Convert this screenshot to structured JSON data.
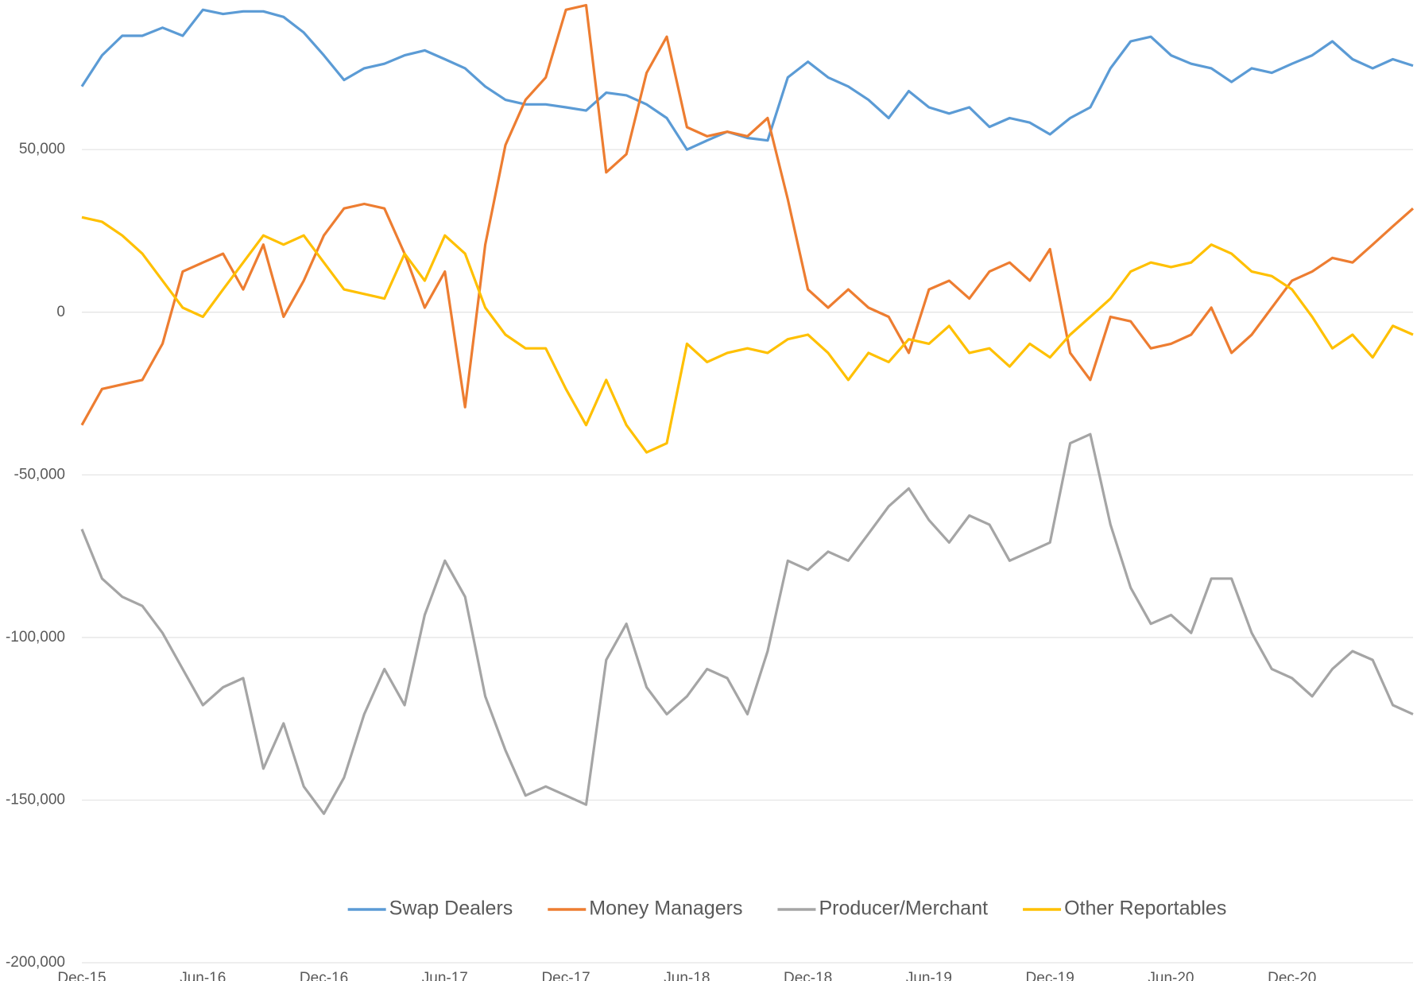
{
  "chart_data": {
    "type": "line",
    "categories": [
      "Dec-15",
      null,
      null,
      null,
      null,
      null,
      "Jun-16",
      null,
      null,
      null,
      null,
      null,
      "Dec-16",
      null,
      null,
      null,
      null,
      null,
      "Jun-17",
      null,
      null,
      null,
      null,
      null,
      "Dec-17",
      null,
      null,
      null,
      null,
      null,
      "Jun-18",
      null,
      null,
      null,
      null,
      null,
      "Dec-18",
      null,
      null,
      null,
      null,
      null,
      "Jun-19",
      null,
      null,
      null,
      null,
      null,
      "Dec-19",
      null,
      null,
      null,
      null,
      null,
      "Jun-20",
      null,
      null,
      null,
      null,
      null,
      "Dec-20",
      null,
      null,
      null,
      null,
      null,
      null
    ],
    "series": [
      {
        "name": "Swap Dealers",
        "color": "#5b9bd5",
        "values": [
          69400,
          79000,
          85000,
          85000,
          87500,
          85000,
          93000,
          91700,
          92500,
          92500,
          90800,
          86000,
          79000,
          71400,
          75000,
          76400,
          79000,
          80500,
          77800,
          75000,
          69400,
          65300,
          63900,
          63900,
          63000,
          62000,
          67500,
          66700,
          63900,
          59700,
          50000,
          52800,
          55500,
          53600,
          52800,
          72200,
          77000,
          72200,
          69400,
          65300,
          59700,
          68000,
          63000,
          61100,
          63000,
          57000,
          59700,
          58300,
          54700,
          59700,
          63000,
          75000,
          83300,
          84700,
          79000,
          76400,
          75000,
          70800,
          75000,
          73600,
          76400,
          79000,
          83300,
          77800,
          75000,
          77800,
          75800
        ]
      },
      {
        "name": "Money Managers",
        "color": "#ed7d31",
        "values": [
          -34700,
          -23600,
          -22200,
          -20800,
          -9700,
          12500,
          15300,
          18000,
          7000,
          20800,
          -1400,
          9700,
          23600,
          31900,
          33300,
          31900,
          18000,
          1400,
          12500,
          -29200,
          20800,
          51400,
          65300,
          72200,
          93000,
          94400,
          43000,
          48600,
          73600,
          84700,
          56900,
          54100,
          55500,
          54100,
          59700,
          34700,
          7000,
          1400,
          7000,
          1400,
          -1400,
          -12500,
          7000,
          9700,
          4200,
          12500,
          15300,
          9700,
          19400,
          -12500,
          -20800,
          -1400,
          -2800,
          -11100,
          -9700,
          -6900,
          1400,
          -12500,
          -6900,
          1400,
          9700,
          12500,
          16700,
          15300,
          20800,
          26400,
          31900
        ]
      },
      {
        "name": "Producer/Merchant",
        "color": "#a5a5a5",
        "values": [
          -66700,
          -81900,
          -87500,
          -90300,
          -98600,
          -109700,
          -120800,
          -115300,
          -112500,
          -140300,
          -126400,
          -145800,
          -154200,
          -143100,
          -123600,
          -109700,
          -120800,
          -93100,
          -76400,
          -87500,
          -118100,
          -134700,
          -148600,
          -145800,
          -148600,
          -151400,
          -106900,
          -95800,
          -115300,
          -123600,
          -118100,
          -109700,
          -112500,
          -123600,
          -104200,
          -76400,
          -79200,
          -73600,
          -76400,
          -68100,
          -59700,
          -54200,
          -63900,
          -70800,
          -62500,
          -65300,
          -76400,
          -73600,
          -70800,
          -40300,
          -37500,
          -65300,
          -84700,
          -95800,
          -93100,
          -98600,
          -81900,
          -81900,
          -98600,
          -109700,
          -112500,
          -118100,
          -109700,
          -104200,
          -106900,
          -120800,
          -123600
        ]
      },
      {
        "name": "Other Reportables",
        "color": "#ffc000",
        "values": [
          29200,
          27800,
          23600,
          18000,
          9700,
          1400,
          -1400,
          7000,
          15300,
          23600,
          20800,
          23600,
          15300,
          7000,
          5600,
          4200,
          18000,
          9700,
          23600,
          18000,
          1400,
          -6900,
          -11100,
          -11100,
          -23600,
          -34700,
          -20800,
          -34700,
          -43100,
          -40300,
          -9700,
          -15300,
          -12500,
          -11100,
          -12500,
          -8300,
          -6900,
          -12500,
          -20800,
          -12500,
          -15300,
          -8300,
          -9700,
          -4200,
          -12500,
          -11100,
          -16700,
          -9700,
          -13900,
          -6900,
          -1400,
          4200,
          12500,
          15300,
          13900,
          15300,
          20800,
          18000,
          12500,
          11100,
          7000,
          -1400,
          -11100,
          -6900,
          -13900,
          -4200,
          -6900
        ]
      }
    ],
    "ylim": [
      -200000,
      96000
    ],
    "yticks": [
      {
        "value": -200000,
        "label": "-200,000"
      },
      {
        "value": -150000,
        "label": "-150,000"
      },
      {
        "value": -100000,
        "label": "-100,000"
      },
      {
        "value": -50000,
        "label": "-50,000"
      },
      0,
      {
        "value": 50000,
        "label": "50,000"
      }
    ],
    "grid": true,
    "legend": "bottom"
  }
}
